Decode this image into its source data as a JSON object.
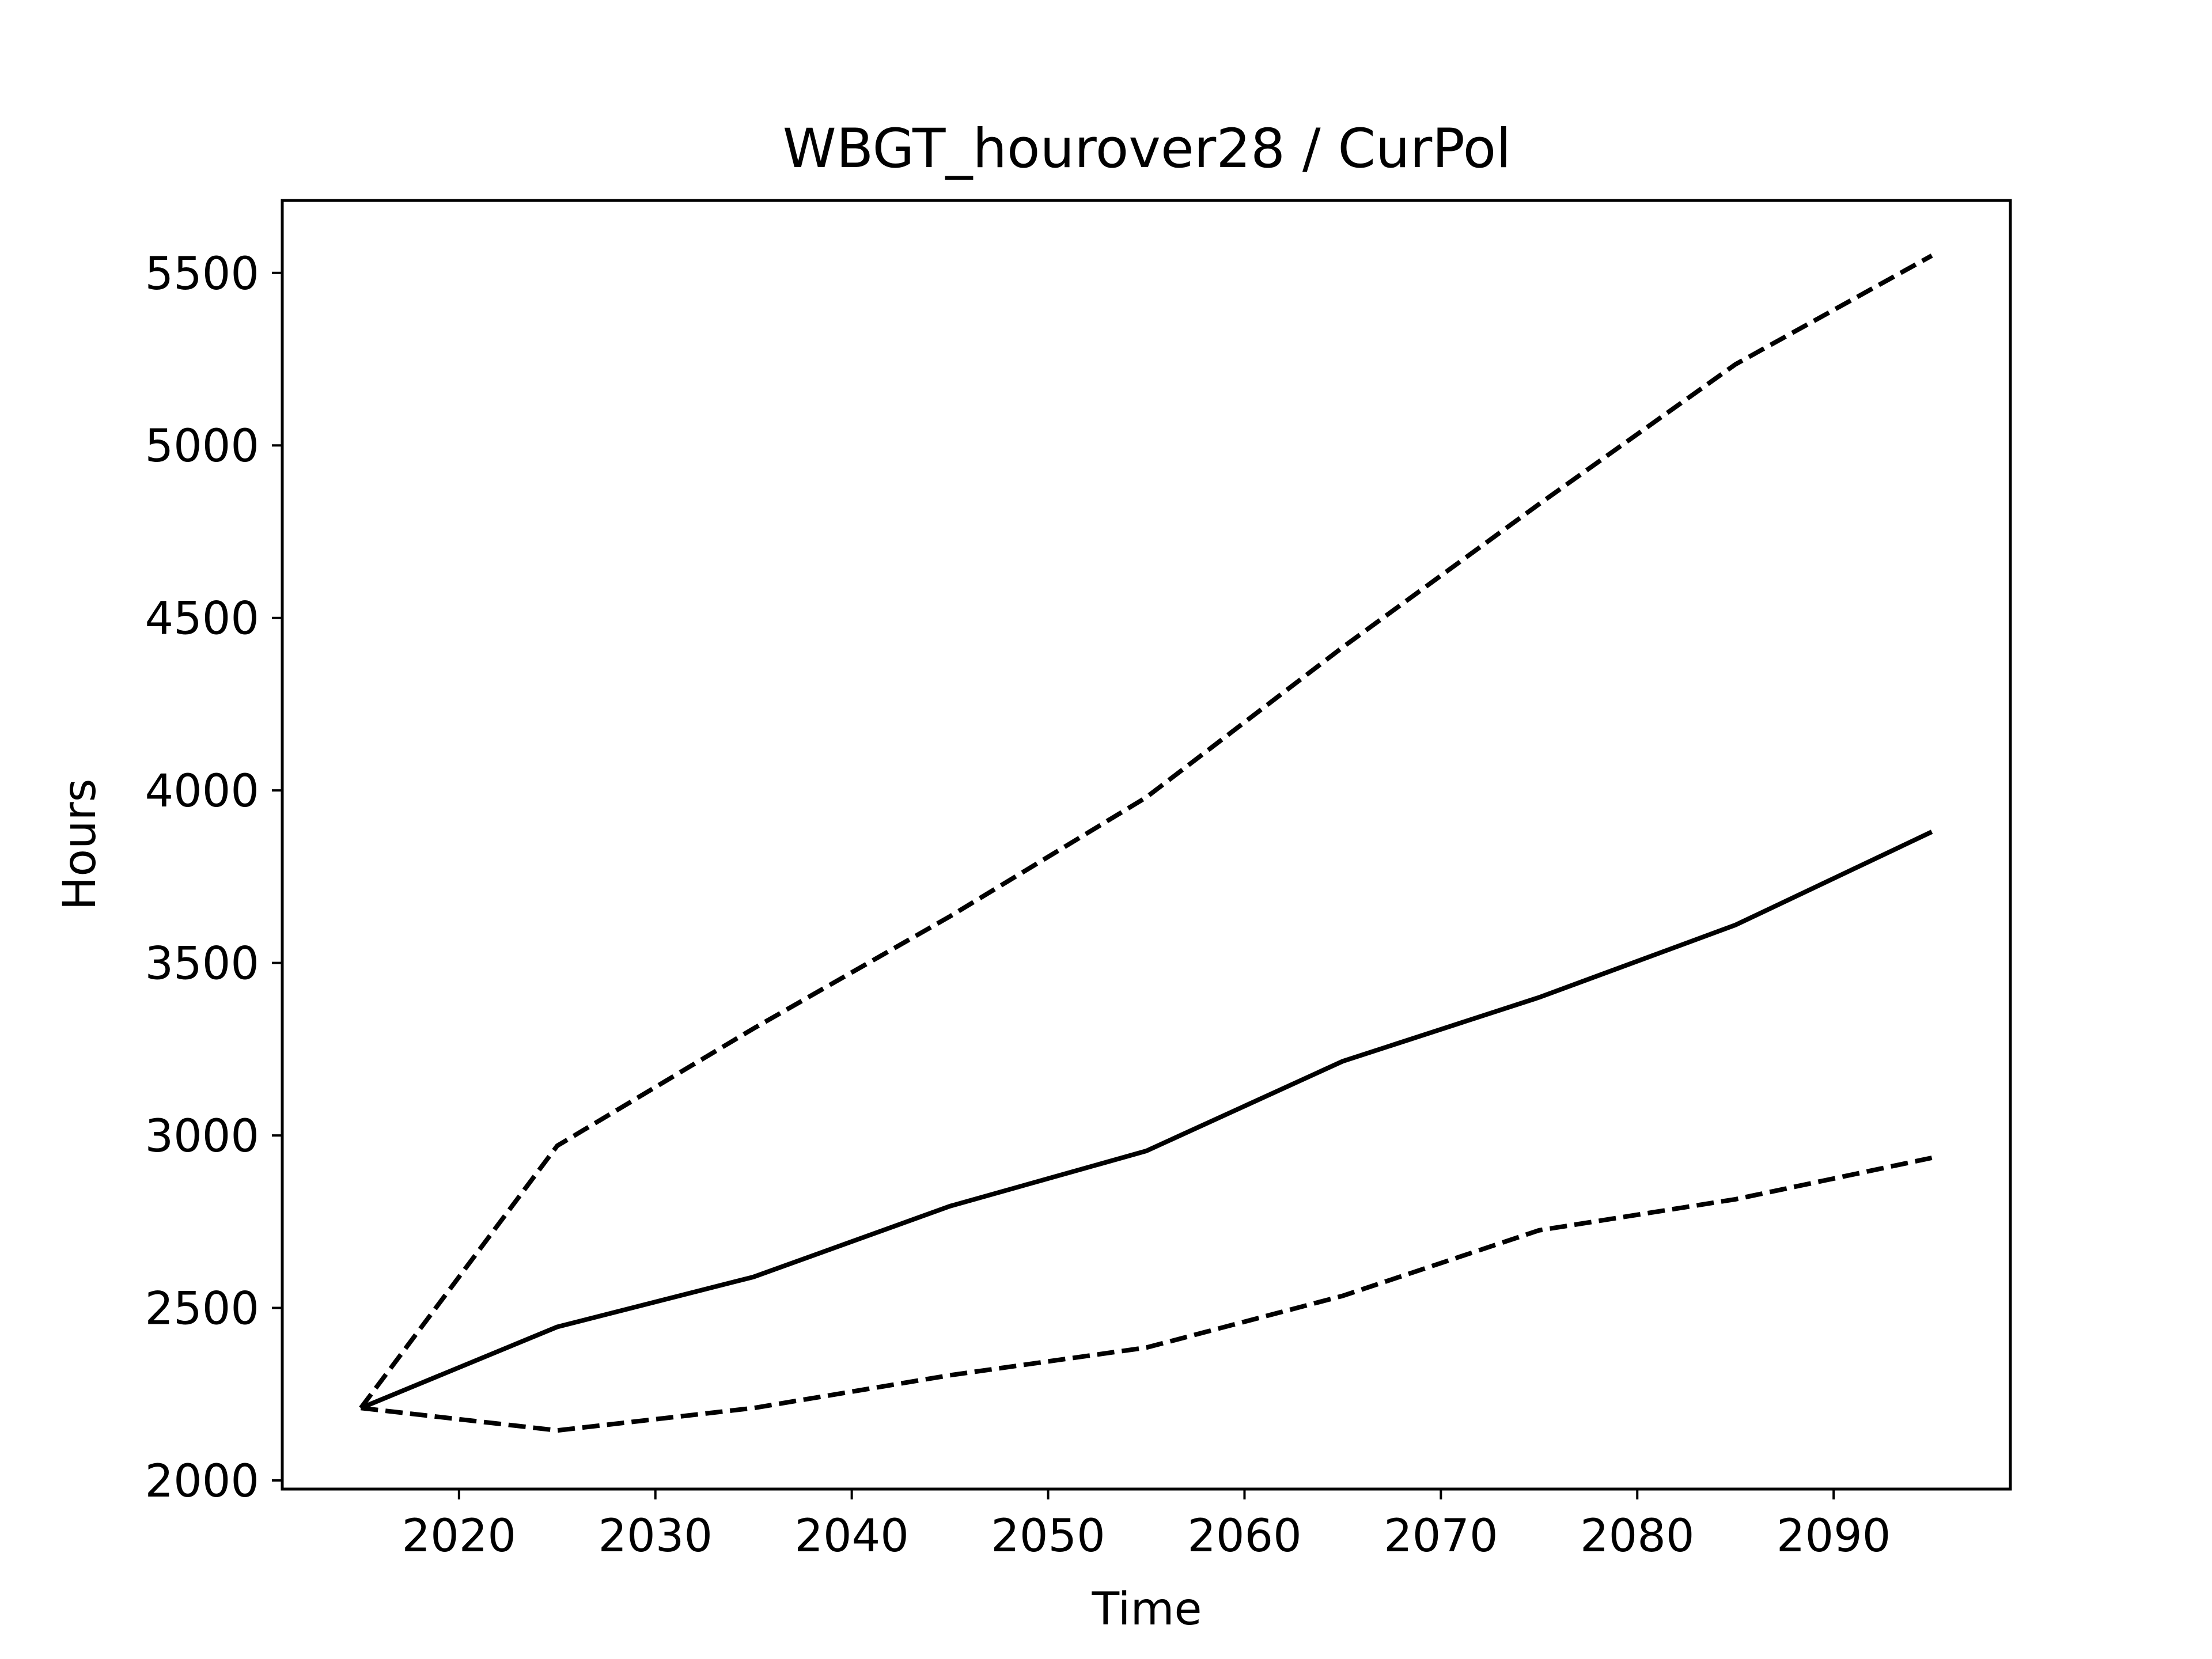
{
  "chart_data": {
    "type": "line",
    "title": "WBGT_hourover28 / CurPol",
    "xlabel": "Time",
    "ylabel": "Hours",
    "x": [
      2015,
      2025,
      2035,
      2045,
      2055,
      2065,
      2075,
      2085,
      2095
    ],
    "xlim": [
      2011,
      2099
    ],
    "ylim": [
      1975,
      5710
    ],
    "xticks": [
      "2020",
      "2030",
      "2040",
      "2050",
      "2060",
      "2070",
      "2080",
      "2090"
    ],
    "yticks": [
      "2000",
      "2500",
      "3000",
      "3500",
      "4000",
      "4500",
      "5000",
      "5500"
    ],
    "grid": false,
    "series": [
      {
        "style": "solid",
        "color": "#000000",
        "values": [
          2210,
          2445,
          2590,
          2795,
          2955,
          3215,
          3400,
          3610,
          3880
        ]
      },
      {
        "style": "dashed",
        "color": "#000000",
        "values": [
          2210,
          2970,
          3310,
          3635,
          3980,
          4415,
          4830,
          5235,
          5550
        ]
      },
      {
        "style": "dashed",
        "color": "#000000",
        "values": [
          2210,
          2145,
          2210,
          2305,
          2385,
          2535,
          2725,
          2815,
          2935
        ]
      }
    ]
  }
}
